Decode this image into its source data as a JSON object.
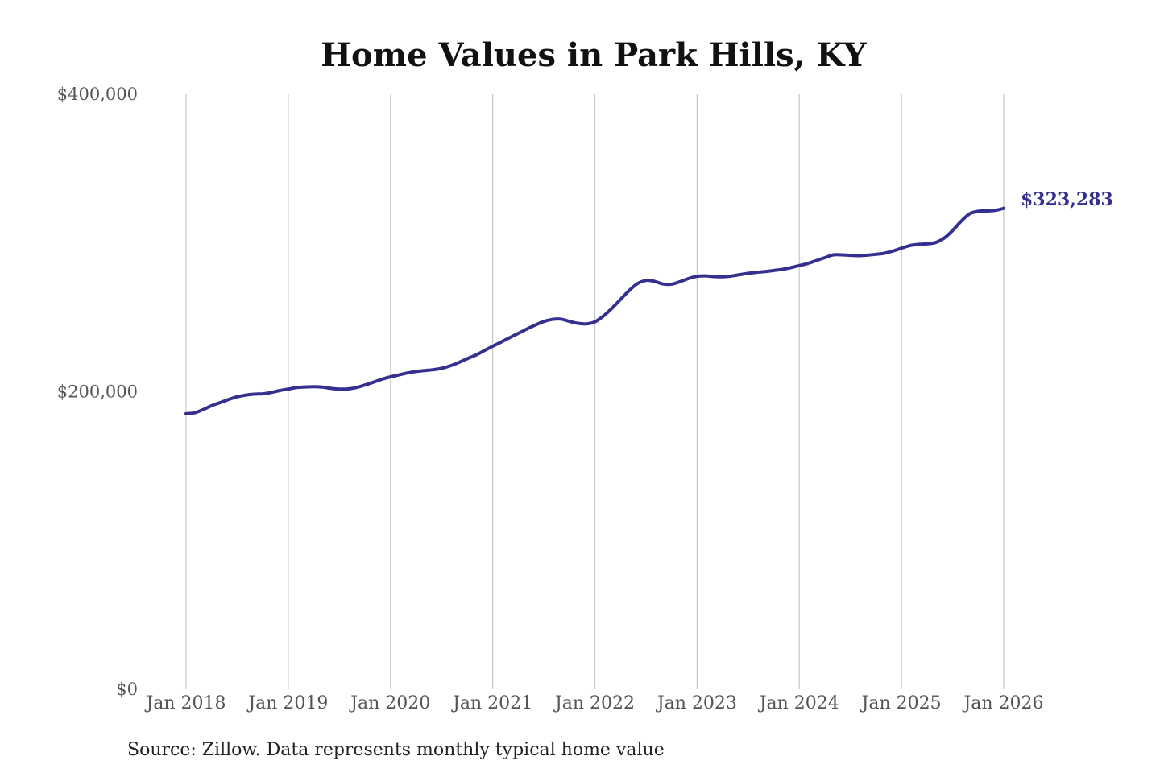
{
  "chart_data": {
    "type": "line",
    "title": "Home Values in Park Hills, KY",
    "xlabel": "",
    "ylabel": "",
    "ylim": [
      0,
      400000
    ],
    "y_ticks": [
      {
        "value": 0,
        "label": "$0"
      },
      {
        "value": 200000,
        "label": "$200,000"
      },
      {
        "value": 400000,
        "label": "$400,000"
      }
    ],
    "x_ticks": [
      {
        "value": 2018.0,
        "label": "Jan 2018"
      },
      {
        "value": 2019.0,
        "label": "Jan 2019"
      },
      {
        "value": 2020.0,
        "label": "Jan 2020"
      },
      {
        "value": 2021.0,
        "label": "Jan 2021"
      },
      {
        "value": 2022.0,
        "label": "Jan 2022"
      },
      {
        "value": 2023.0,
        "label": "Jan 2023"
      },
      {
        "value": 2024.0,
        "label": "Jan 2024"
      },
      {
        "value": 2025.0,
        "label": "Jan 2025"
      },
      {
        "value": 2026.0,
        "label": "Jan 2026"
      }
    ],
    "xlim": [
      2018.0,
      2026.0
    ],
    "grid": "vertical",
    "line_color": "#35308f",
    "end_label": "$323,283",
    "series": [
      {
        "points": [
          [
            "2018-01",
            185200
          ],
          [
            "2018-02",
            185800
          ],
          [
            "2018-03",
            188000
          ],
          [
            "2018-04",
            190600
          ],
          [
            "2018-05",
            192700
          ],
          [
            "2018-06",
            194800
          ],
          [
            "2018-07",
            196600
          ],
          [
            "2018-08",
            197700
          ],
          [
            "2018-09",
            198400
          ],
          [
            "2018-10",
            198600
          ],
          [
            "2018-11",
            199500
          ],
          [
            "2018-12",
            200800
          ],
          [
            "2019-01",
            201800
          ],
          [
            "2019-02",
            202800
          ],
          [
            "2019-03",
            203200
          ],
          [
            "2019-04",
            203400
          ],
          [
            "2019-05",
            203100
          ],
          [
            "2019-06",
            202300
          ],
          [
            "2019-07",
            201800
          ],
          [
            "2019-08",
            201900
          ],
          [
            "2019-09",
            202800
          ],
          [
            "2019-10",
            204500
          ],
          [
            "2019-11",
            206400
          ],
          [
            "2019-12",
            208400
          ],
          [
            "2020-01",
            210000
          ],
          [
            "2020-02",
            211300
          ],
          [
            "2020-03",
            212600
          ],
          [
            "2020-04",
            213600
          ],
          [
            "2020-05",
            214200
          ],
          [
            "2020-06",
            214800
          ],
          [
            "2020-07",
            215700
          ],
          [
            "2020-08",
            217400
          ],
          [
            "2020-09",
            219600
          ],
          [
            "2020-10",
            222200
          ],
          [
            "2020-11",
            224600
          ],
          [
            "2020-12",
            227600
          ],
          [
            "2021-01",
            230600
          ],
          [
            "2021-02",
            233400
          ],
          [
            "2021-03",
            236400
          ],
          [
            "2021-04",
            239200
          ],
          [
            "2021-05",
            242100
          ],
          [
            "2021-06",
            244800
          ],
          [
            "2021-07",
            247200
          ],
          [
            "2021-08",
            248600
          ],
          [
            "2021-09",
            248800
          ],
          [
            "2021-10",
            247300
          ],
          [
            "2021-11",
            246000
          ],
          [
            "2021-12",
            245600
          ],
          [
            "2022-01",
            247000
          ],
          [
            "2022-02",
            250900
          ],
          [
            "2022-03",
            256100
          ],
          [
            "2022-04",
            262000
          ],
          [
            "2022-05",
            267900
          ],
          [
            "2022-06",
            272700
          ],
          [
            "2022-07",
            274800
          ],
          [
            "2022-08",
            274200
          ],
          [
            "2022-09",
            272400
          ],
          [
            "2022-10",
            272300
          ],
          [
            "2022-11",
            274000
          ],
          [
            "2022-12",
            276100
          ],
          [
            "2023-01",
            277600
          ],
          [
            "2023-02",
            277900
          ],
          [
            "2023-03",
            277400
          ],
          [
            "2023-04",
            277300
          ],
          [
            "2023-05",
            277800
          ],
          [
            "2023-06",
            278700
          ],
          [
            "2023-07",
            279600
          ],
          [
            "2023-08",
            280300
          ],
          [
            "2023-09",
            280800
          ],
          [
            "2023-10",
            281500
          ],
          [
            "2023-11",
            282300
          ],
          [
            "2023-12",
            283400
          ],
          [
            "2024-01",
            284800
          ],
          [
            "2024-02",
            286200
          ],
          [
            "2024-03",
            288200
          ],
          [
            "2024-04",
            290100
          ],
          [
            "2024-05",
            292000
          ],
          [
            "2024-06",
            292000
          ],
          [
            "2024-07",
            291700
          ],
          [
            "2024-08",
            291500
          ],
          [
            "2024-09",
            291800
          ],
          [
            "2024-10",
            292400
          ],
          [
            "2024-11",
            293100
          ],
          [
            "2024-12",
            294600
          ],
          [
            "2025-01",
            296500
          ],
          [
            "2025-02",
            298300
          ],
          [
            "2025-03",
            299100
          ],
          [
            "2025-04",
            299400
          ],
          [
            "2025-05",
            300300
          ],
          [
            "2025-06",
            303300
          ],
          [
            "2025-07",
            308400
          ],
          [
            "2025-08",
            314600
          ],
          [
            "2025-09",
            319600
          ],
          [
            "2025-10",
            321300
          ],
          [
            "2025-11",
            321500
          ],
          [
            "2025-12",
            321900
          ],
          [
            "2026-01",
            323283
          ]
        ]
      }
    ]
  },
  "source_note": "Source: Zillow. Data represents monthly typical home value"
}
